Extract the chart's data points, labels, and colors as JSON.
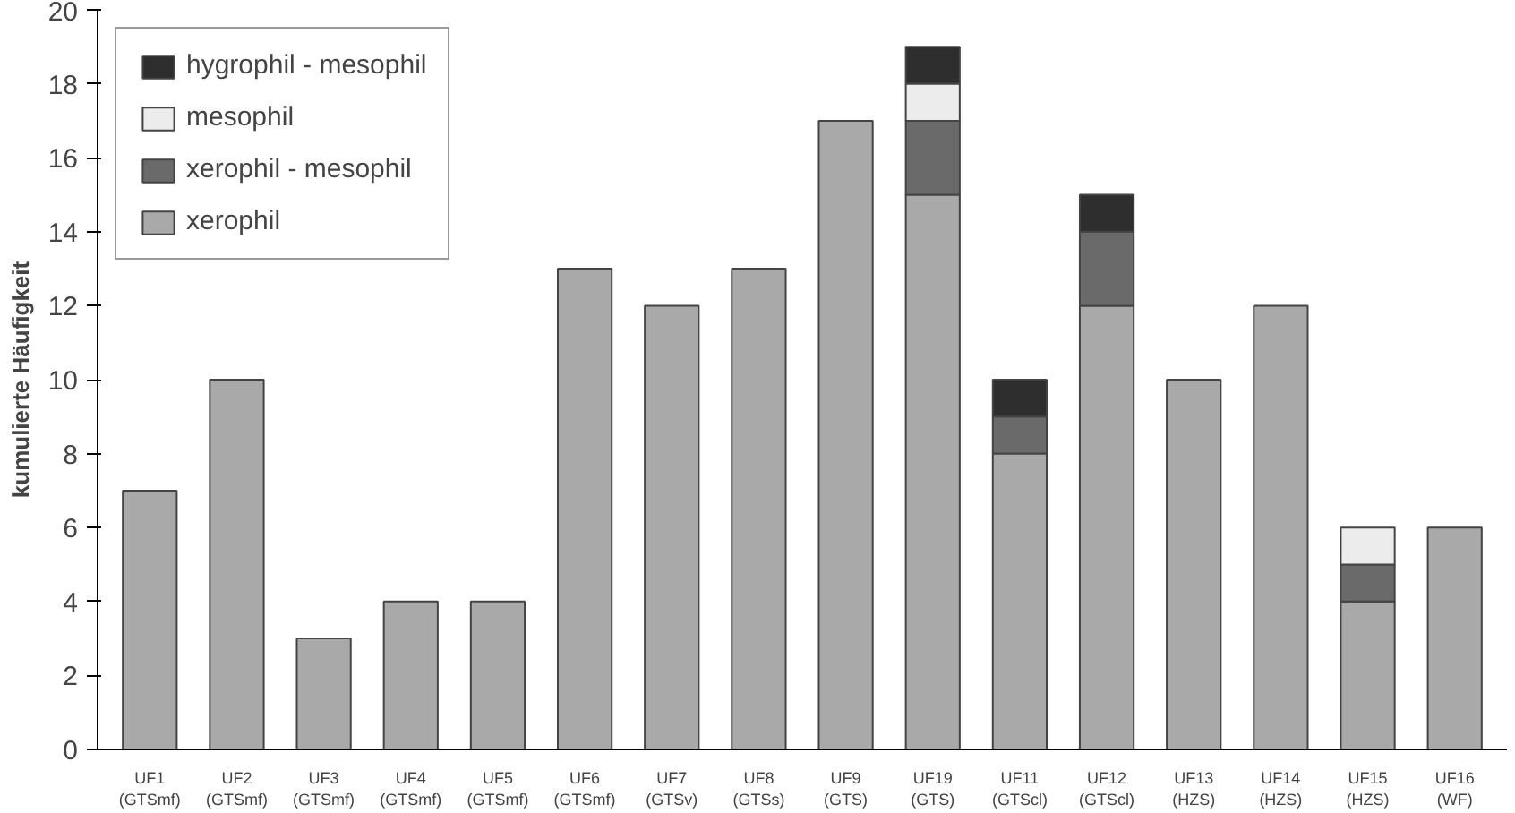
{
  "chart_data": {
    "type": "bar",
    "stacked": true,
    "ylabel": "kumulierte Häufigkeit",
    "categories": [
      "UF1\n(GTSmf)",
      "UF2\n(GTSmf)",
      "UF3\n(GTSmf)",
      "UF4\n(GTSmf)",
      "UF5\n(GTSmf)",
      "UF6\n(GTSmf)",
      "UF7\n(GTSv)",
      "UF8\n(GTSs)",
      "UF9\n(GTS)",
      "UF19\n(GTS)",
      "UF11\n(GTScl)",
      "UF12\n(GTScl)",
      "UF13\n(HZS)",
      "UF14\n(HZS)",
      "UF15\n(HZS)",
      "UF16\n(WF)"
    ],
    "series": [
      {
        "name": "xerophil",
        "color": "#a9a9a9",
        "values": [
          7,
          10,
          3,
          4,
          4,
          13,
          12,
          13,
          17,
          15,
          8,
          12,
          10,
          12,
          4,
          6
        ]
      },
      {
        "name": "xerophil - mesophil",
        "color": "#6a6a6a",
        "values": [
          0,
          0,
          0,
          0,
          0,
          0,
          0,
          0,
          0,
          2,
          1,
          2,
          0,
          0,
          1,
          0
        ]
      },
      {
        "name": "mesophil",
        "color": "#ececec",
        "values": [
          0,
          0,
          0,
          0,
          0,
          0,
          0,
          0,
          0,
          1,
          0,
          0,
          0,
          0,
          1,
          0
        ]
      },
      {
        "name": "hygrophil - mesophil",
        "color": "#2e2e2e",
        "values": [
          0,
          0,
          0,
          0,
          0,
          0,
          0,
          0,
          0,
          1,
          1,
          1,
          0,
          0,
          0,
          0
        ]
      }
    ],
    "ylim": [
      0,
      20
    ],
    "yticks": [
      0,
      2,
      4,
      6,
      8,
      10,
      12,
      14,
      16,
      18,
      20
    ],
    "grid": false,
    "legend": "top left"
  }
}
